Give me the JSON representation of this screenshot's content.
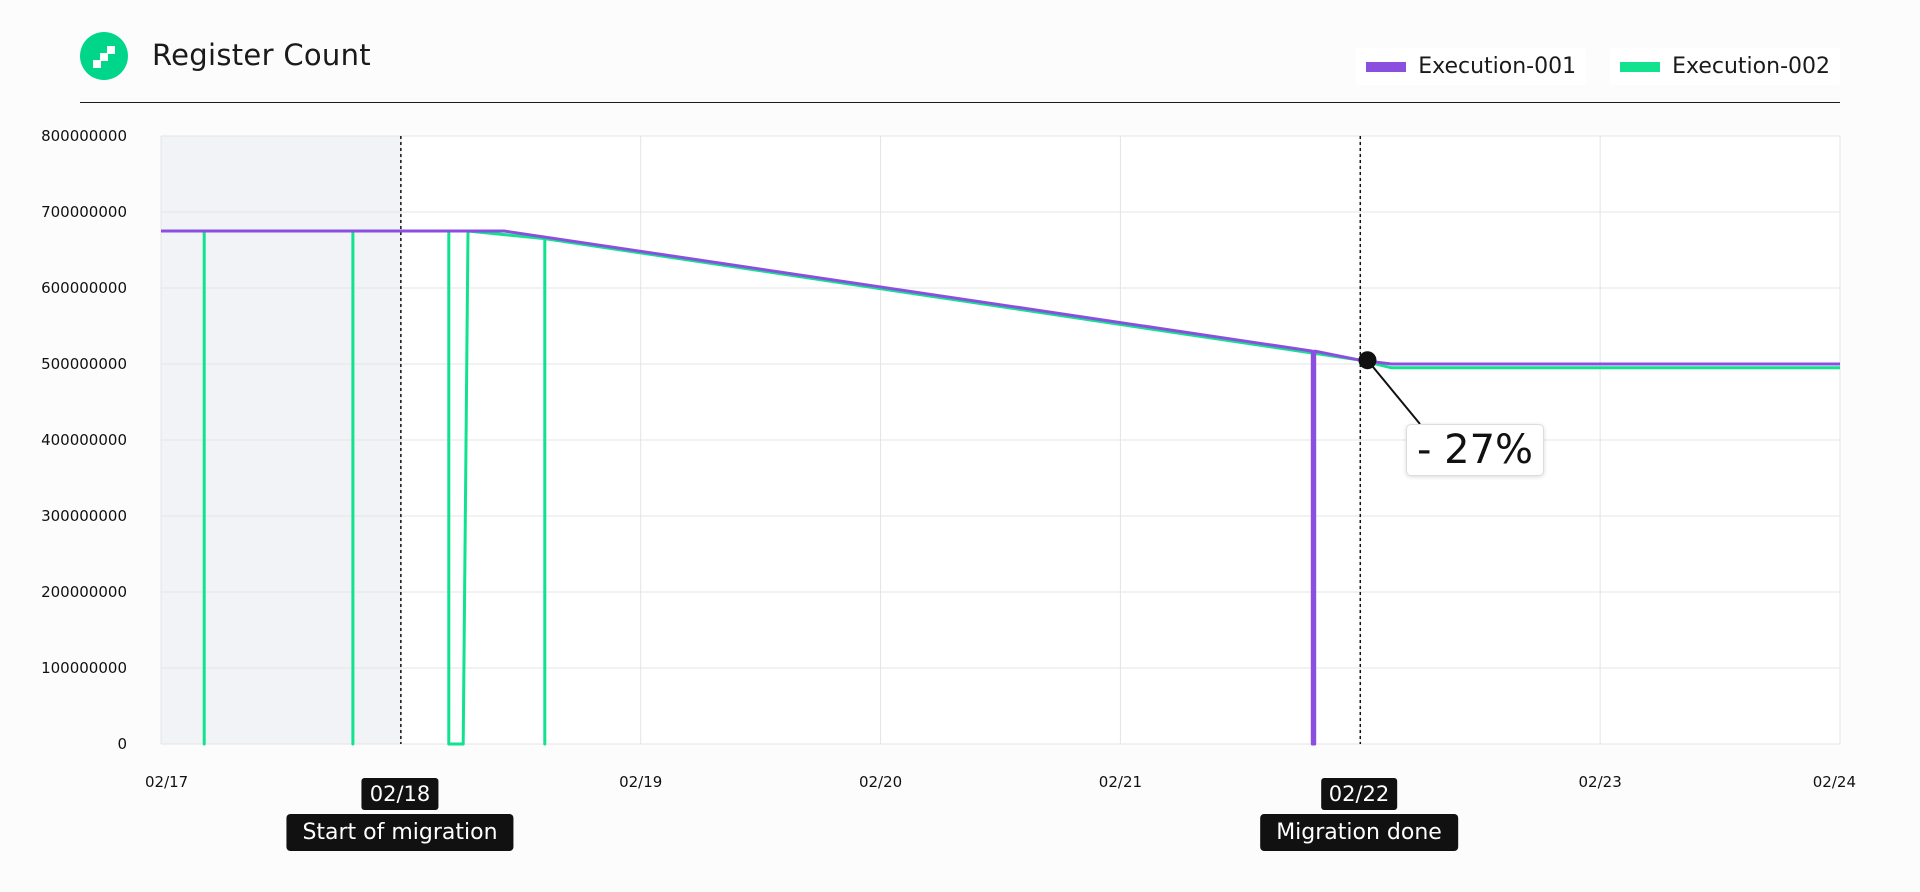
{
  "header": {
    "title": "Register Count",
    "logo_icon": "flow-logo-icon"
  },
  "legend": [
    {
      "label": "Execution-001",
      "color": "#8b4fe0"
    },
    {
      "label": "Execution-002",
      "color": "#10e28e"
    }
  ],
  "markers": [
    {
      "date": "02/18",
      "label": "Start of migration"
    },
    {
      "date": "02/22",
      "label": "Migration done"
    }
  ],
  "callout": "- 27%",
  "chart_data": {
    "type": "line",
    "x_ticks": [
      "02/17",
      "02/18",
      "02/19",
      "02/20",
      "02/21",
      "02/22",
      "02/23",
      "02/24"
    ],
    "y_ticks": [
      "800000000",
      "700000000",
      "600000000",
      "500000000",
      "400000000",
      "300000000",
      "200000000",
      "100000000",
      "0"
    ],
    "ylim": [
      0,
      800000000
    ],
    "xlim_days": [
      0,
      7
    ],
    "grid": true,
    "legend_position": "top-right",
    "shaded_region_days": [
      0,
      1
    ],
    "vertical_markers_days": [
      1,
      5
    ],
    "series": [
      {
        "name": "Execution-001",
        "color": "#8b4fe0",
        "points": [
          [
            0,
            675000000
          ],
          [
            1.43,
            675000000
          ],
          [
            4.8,
            517000000
          ],
          [
            4.8,
            0
          ],
          [
            4.81,
            0
          ],
          [
            4.81,
            517000000
          ],
          [
            5.0,
            505000000
          ],
          [
            5.13,
            500000000
          ],
          [
            7,
            500000000
          ]
        ]
      },
      {
        "name": "Execution-002",
        "color": "#10e28e",
        "points": [
          [
            0,
            675000000
          ],
          [
            0.18,
            675000000
          ],
          [
            0.18,
            0
          ],
          [
            0.18,
            675000000
          ],
          [
            0.8,
            675000000
          ],
          [
            0.8,
            0
          ],
          [
            0.8,
            675000000
          ],
          [
            1.2,
            675000000
          ],
          [
            1.2,
            0
          ],
          [
            1.26,
            0
          ],
          [
            1.28,
            675000000
          ],
          [
            1.6,
            665000000
          ],
          [
            1.6,
            0
          ],
          [
            1.6,
            665000000
          ],
          [
            5.0,
            505000000
          ],
          [
            5.13,
            495000000
          ],
          [
            7,
            495000000
          ]
        ]
      }
    ],
    "annotation": {
      "text": "- 27%",
      "x": 5.03,
      "y": 505000000
    }
  }
}
